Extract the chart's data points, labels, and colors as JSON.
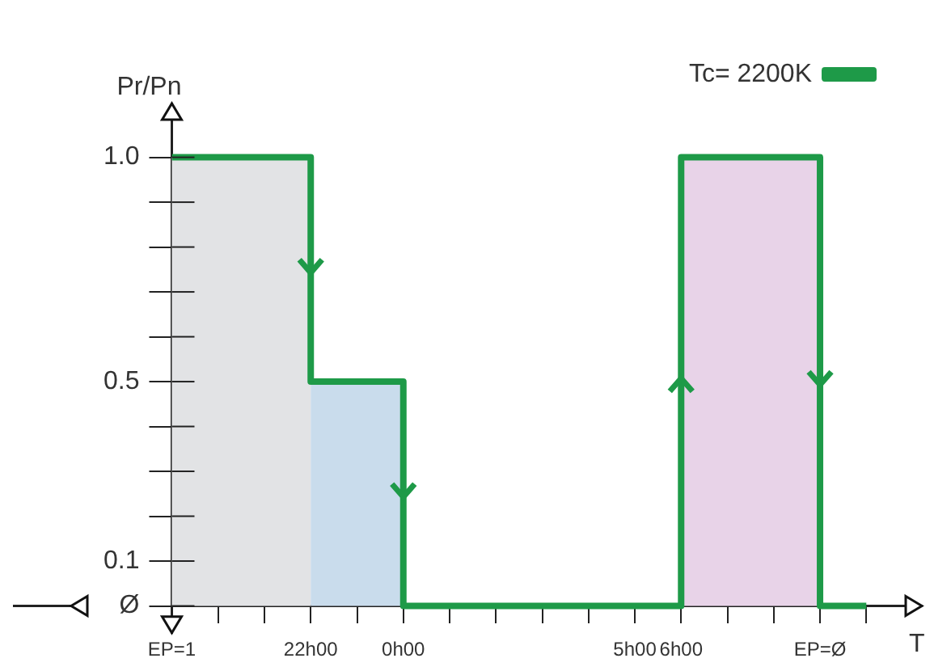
{
  "chart_data": {
    "type": "step",
    "xlabel": "T",
    "ylabel": "Pr/Pn",
    "categories": [
      "EP=1",
      null,
      null,
      "22h00",
      null,
      "0h00",
      null,
      null,
      null,
      null,
      "5h00",
      "6h00",
      null,
      null,
      "EP=Ø",
      null
    ],
    "series": [
      {
        "name": "Tc= 2200K",
        "color": "#1e9a48",
        "values": [
          1,
          1,
          1,
          0.5,
          0.5,
          0,
          0,
          0,
          0,
          0,
          0,
          1,
          1,
          1,
          0,
          0
        ]
      }
    ],
    "ylim": [
      -0.06,
      1.12
    ],
    "yticks": [
      {
        "value": 0,
        "label": "Ø"
      },
      0.1,
      {
        "value": 0.2,
        "label": null
      },
      {
        "value": 0.3,
        "label": null
      },
      {
        "value": 0.4,
        "label": null
      },
      0.5,
      {
        "value": 0.6,
        "label": null
      },
      {
        "value": 0.7,
        "label": null
      },
      {
        "value": 0.8,
        "label": null
      },
      {
        "value": 0.9,
        "label": null
      },
      {
        "value": 1.0,
        "label": "1.0"
      }
    ],
    "bands": [
      {
        "axis": "x",
        "from": "EP=1",
        "to": "22h00",
        "color": "#e2e3e5"
      },
      {
        "axis": "x",
        "from": "22h00",
        "to": "0h00",
        "color": "#c9dcec"
      },
      {
        "axis": "x",
        "from": "6h00",
        "to": "EP=Ø",
        "color": "#e8d3e8"
      }
    ],
    "grid": false,
    "legend": "top right",
    "marker": "none",
    "line_style": "solid"
  }
}
